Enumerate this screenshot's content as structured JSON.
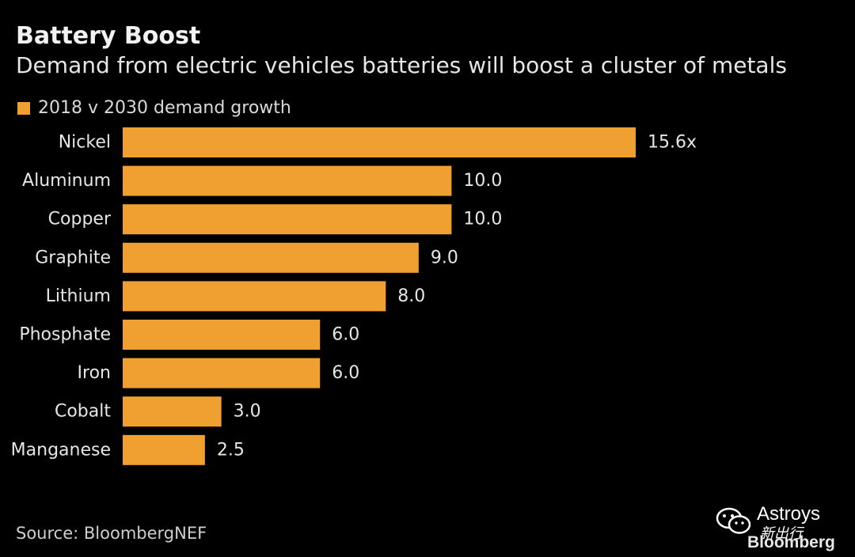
{
  "colors": {
    "bar": "#F0A030",
    "background": "#000000",
    "text": "#E6E6E6"
  },
  "chart_data": {
    "type": "bar",
    "orientation": "horizontal",
    "title": "Battery Boost",
    "subtitle": "Demand from electric vehicles batteries will boost a cluster of metals",
    "categories": [
      "Nickel",
      "Aluminum",
      "Copper",
      "Graphite",
      "Lithium",
      "Phosphate",
      "Iron",
      "Cobalt",
      "Manganese"
    ],
    "series": [
      {
        "name": "2018 v 2030 demand growth",
        "values": [
          15.6,
          10.0,
          10.0,
          9.0,
          8.0,
          6.0,
          6.0,
          3.0,
          2.5
        ],
        "labels": [
          "15.6x",
          "10.0",
          "10.0",
          "9.0",
          "8.0",
          "6.0",
          "6.0",
          "3.0",
          "2.5"
        ]
      }
    ],
    "xlim": [
      0,
      15.6
    ],
    "grid": false,
    "legend_position": "top-left"
  },
  "source": "Source: BloombergNEF",
  "watermark": {
    "icon": "wechat-icon",
    "name": "Astroys",
    "cn": "新出行",
    "brand": "Bloomberg"
  }
}
